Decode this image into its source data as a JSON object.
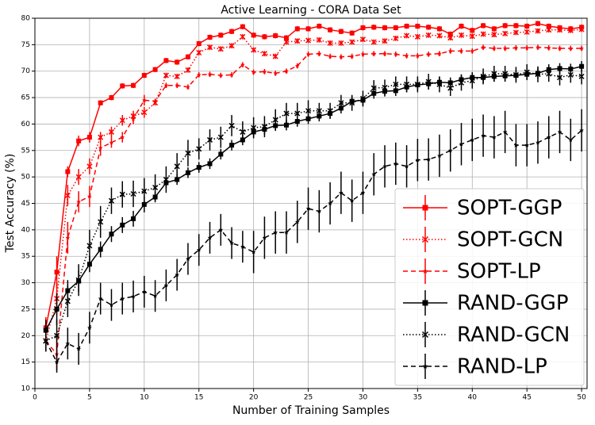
{
  "chart_data": {
    "type": "line",
    "title": "Active Learning - CORA Data Set",
    "x_label": "Number of Training Samples",
    "y_label": "Test Accuracy (%)",
    "x": [
      1,
      2,
      3,
      4,
      5,
      6,
      7,
      8,
      9,
      10,
      11,
      12,
      13,
      14,
      15,
      16,
      17,
      18,
      19,
      20,
      21,
      22,
      23,
      24,
      25,
      26,
      27,
      28,
      29,
      30,
      31,
      32,
      33,
      34,
      35,
      36,
      37,
      38,
      39,
      40,
      41,
      42,
      43,
      44,
      45,
      46,
      47,
      48,
      49,
      50
    ],
    "xlim": [
      0,
      50.5
    ],
    "xticks": [
      0,
      5,
      10,
      15,
      20,
      25,
      30,
      35,
      40,
      45,
      50
    ],
    "ylim": [
      10,
      80
    ],
    "yticks": [
      10,
      15,
      20,
      25,
      30,
      35,
      40,
      45,
      50,
      55,
      60,
      65,
      70,
      75,
      80
    ],
    "grid": true,
    "legend_position": "lower right",
    "series": [
      {
        "name": "SOPT-GGP",
        "color": "#ff0000",
        "linestyle": "solid",
        "marker": "square",
        "values": [
          21.5,
          32,
          51,
          56.8,
          57.5,
          64,
          65,
          67.2,
          67.3,
          69.2,
          70.3,
          72,
          71.7,
          72.7,
          75.2,
          76.4,
          76.8,
          77.5,
          78.4,
          76.8,
          76.5,
          76.7,
          76.3,
          78,
          78,
          78.5,
          77.8,
          77.5,
          77.2,
          78.2,
          78.3,
          78.2,
          78.2,
          78.5,
          78.5,
          78.3,
          78,
          77,
          78.5,
          77.7,
          78.6,
          78,
          78.6,
          78.6,
          78.5,
          79,
          78.5,
          78.2,
          78,
          78.3
        ],
        "errors": [
          2,
          3,
          1,
          1,
          1,
          0.5,
          0.5,
          0.5,
          0.5,
          0.5,
          0.5,
          0.5,
          0.5,
          0.5,
          0.5,
          0.5,
          0.5,
          0.5,
          0.5,
          0.5,
          0.5,
          0.5,
          0.5,
          0.5,
          0.5,
          0.5,
          0.5,
          0.5,
          0.5,
          0.5,
          0.5,
          0.5,
          0.5,
          0.5,
          0.5,
          0.5,
          0.5,
          0.5,
          0.5,
          0.5,
          0.5,
          0.5,
          0.5,
          0.5,
          0.5,
          0.5,
          0.5,
          0.5,
          0.5,
          0.5
        ]
      },
      {
        "name": "SOPT-GCN",
        "color": "#ff0000",
        "linestyle": "dotted",
        "marker": "x",
        "values": [
          19,
          27,
          46.5,
          50,
          52,
          57.5,
          58.5,
          60.7,
          61.5,
          62.2,
          64,
          69.2,
          69,
          70.2,
          73.5,
          74.5,
          74.2,
          74.8,
          76.5,
          74,
          73.3,
          72.8,
          75.5,
          75.7,
          75.8,
          75.9,
          75.3,
          75.3,
          75.5,
          76,
          75.5,
          75.7,
          76.2,
          76.7,
          76.5,
          76.8,
          76.7,
          76.3,
          76.8,
          76.6,
          77,
          76.9,
          77.1,
          77.3,
          77.4,
          77.6,
          77.8,
          77.8,
          77.7,
          77.9
        ],
        "errors": [
          2,
          3,
          2,
          1.5,
          1.5,
          1,
          1,
          1,
          1,
          1,
          0.5,
          0.5,
          0.5,
          0.5,
          0.5,
          0.5,
          0.5,
          0.5,
          0.5,
          0.5,
          0.5,
          0.5,
          0.5,
          0.5,
          0.5,
          0.5,
          0.5,
          0.5,
          0.5,
          0.5,
          0.5,
          0.5,
          0.5,
          0.5,
          0.5,
          0.5,
          0.5,
          0.5,
          0.5,
          0.5,
          0.5,
          0.5,
          0.5,
          0.5,
          0.5,
          0.5,
          0.5,
          0.5,
          0.5,
          0.5
        ]
      },
      {
        "name": "SOPT-LP",
        "color": "#ff0000",
        "linestyle": "dashed",
        "marker": "star",
        "values": [
          19,
          16.5,
          38.5,
          45.3,
          46.3,
          55.5,
          56.5,
          57.5,
          61,
          64.5,
          64.3,
          67.3,
          67.3,
          67,
          69.3,
          69.4,
          69.2,
          69.3,
          71.2,
          69.8,
          69.9,
          69.6,
          70,
          71,
          73.2,
          73.3,
          72.8,
          72.7,
          72.8,
          73.2,
          73.3,
          73.3,
          73.2,
          72.9,
          72.9,
          73.2,
          73.3,
          73.8,
          73.8,
          73.8,
          74.5,
          74.3,
          74.3,
          74.4,
          74.4,
          74.5,
          74.4,
          74.3,
          74.3,
          74.3
        ],
        "errors": [
          2,
          3,
          3,
          2,
          2,
          1.5,
          1,
          1,
          1,
          1,
          0.5,
          0.5,
          0.5,
          0.5,
          0.5,
          0.5,
          0.5,
          0.5,
          0.5,
          0.5,
          0.5,
          0.5,
          0.5,
          0.5,
          0.5,
          0.5,
          0.5,
          0.5,
          0.5,
          0.5,
          0.5,
          0.5,
          0.5,
          0.5,
          0.5,
          0.5,
          0.5,
          0.5,
          0.5,
          0.5,
          0.5,
          0.5,
          0.5,
          0.5,
          0.5,
          0.5,
          0.5,
          0.5,
          0.5,
          0.5
        ]
      },
      {
        "name": "RAND-GGP",
        "color": "#000000",
        "linestyle": "solid",
        "marker": "square",
        "values": [
          21,
          25,
          28.5,
          30.3,
          33.5,
          36.3,
          39.2,
          40.9,
          42.1,
          44.8,
          46.2,
          48.9,
          49.5,
          50.8,
          51.8,
          52.5,
          54.3,
          56,
          57,
          58.5,
          59,
          59.7,
          59.8,
          60.5,
          61,
          61.5,
          62,
          63,
          64.3,
          64.5,
          65.8,
          66.2,
          66.3,
          67,
          67.4,
          67.6,
          67.9,
          67.8,
          68.4,
          68.8,
          68.8,
          69,
          69.1,
          69.2,
          69.4,
          69.6,
          70.3,
          70.5,
          70.4,
          70.9
        ],
        "errors": [
          2,
          3,
          2,
          2,
          1.5,
          1.5,
          1.5,
          1.5,
          1.5,
          1.5,
          1,
          1,
          1,
          1,
          1,
          1,
          1,
          1,
          1,
          1,
          1,
          1,
          1,
          1,
          1,
          1,
          1,
          1,
          1,
          1,
          1,
          1,
          1,
          1,
          1,
          1,
          1,
          1,
          1,
          1,
          1,
          1,
          1,
          1,
          1,
          1,
          1,
          1,
          1,
          1
        ]
      },
      {
        "name": "RAND-GCN",
        "color": "#000000",
        "linestyle": "dotted",
        "marker": "x",
        "values": [
          19,
          20,
          26.5,
          30.5,
          37,
          41.5,
          45.5,
          46.7,
          46.8,
          47.3,
          48,
          49.5,
          52,
          54.5,
          55.3,
          57,
          57.5,
          59.7,
          58.5,
          59.3,
          59.5,
          60.8,
          62,
          62,
          62.5,
          62.5,
          62.5,
          64,
          64,
          64.8,
          66.8,
          66.9,
          67.5,
          67.5,
          67.5,
          68,
          67.5,
          66.8,
          67.8,
          68.2,
          69,
          69.5,
          69.5,
          69.3,
          69.8,
          69.4,
          69.5,
          68.8,
          69.3,
          69
        ],
        "errors": [
          2,
          3,
          3,
          3,
          3,
          3,
          2.5,
          2.5,
          2.5,
          2.5,
          2.5,
          2.5,
          2.5,
          2.5,
          2,
          2,
          2,
          2,
          2,
          2,
          2,
          2,
          2,
          2,
          2,
          1.5,
          1.5,
          1.5,
          1.5,
          1.5,
          1.5,
          1.5,
          1.5,
          1.5,
          1.5,
          1.5,
          1.5,
          1.5,
          1.5,
          1.5,
          1.5,
          1.5,
          1.5,
          1.5,
          1.5,
          1.5,
          1.5,
          1.5,
          1.5,
          1.5
        ]
      },
      {
        "name": "RAND-LP",
        "color": "#000000",
        "linestyle": "dashed",
        "marker": "star",
        "values": [
          19,
          15,
          18.5,
          17.5,
          21.5,
          27,
          25.8,
          27,
          27.4,
          28.3,
          27.5,
          29.5,
          31.5,
          34.5,
          36.2,
          38.5,
          40,
          37.5,
          36.8,
          35.8,
          38.5,
          39.5,
          39.5,
          41.5,
          44,
          43.5,
          45,
          47,
          45.5,
          47,
          50.5,
          52,
          52.5,
          52,
          53.2,
          53.3,
          54,
          55,
          56.2,
          57,
          57.8,
          57.5,
          58.5,
          56,
          56,
          56.5,
          57.5,
          58.5,
          57,
          58.8
        ],
        "errors": [
          2,
          2,
          3,
          3,
          3,
          3,
          3,
          3,
          3,
          3,
          3,
          3,
          3,
          3,
          3,
          3,
          3,
          3,
          3,
          4,
          4,
          4,
          4,
          4,
          4,
          4,
          4,
          4,
          4,
          4,
          4,
          4,
          4,
          4,
          4,
          4,
          4,
          4,
          4,
          4,
          4,
          4,
          4,
          4,
          4,
          4,
          4,
          4,
          4,
          4
        ]
      }
    ]
  }
}
